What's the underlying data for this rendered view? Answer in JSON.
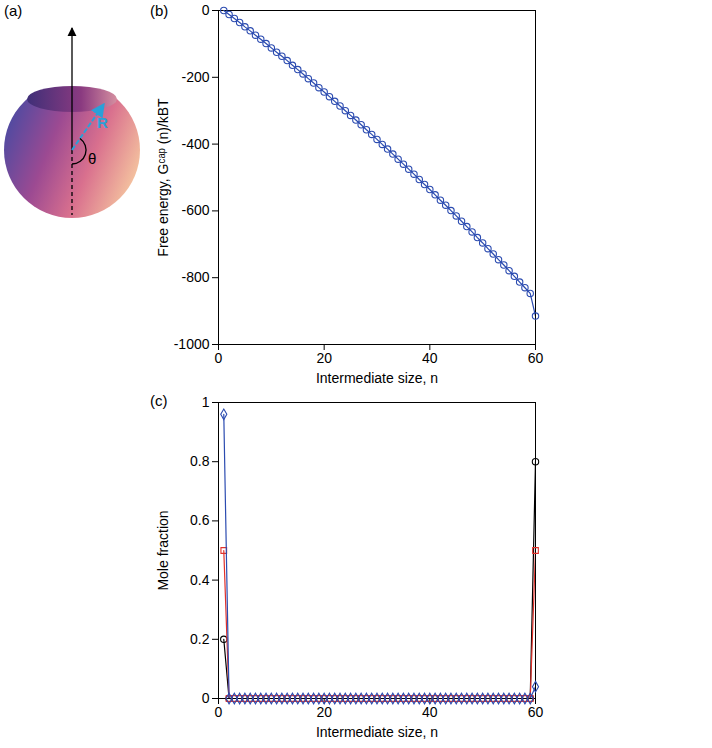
{
  "chart_data": [
    {
      "type": "diagram",
      "panel": "(a)",
      "labels": {
        "radius": "R",
        "angle": "θ"
      }
    },
    {
      "type": "line",
      "panel": "(b)",
      "x_label": "Intermediate size, n",
      "y_label": "Free energy, Gᶜᵃᵖ (n)/kBT",
      "x": [
        1,
        2,
        3,
        4,
        5,
        6,
        7,
        8,
        9,
        10,
        11,
        12,
        13,
        14,
        15,
        16,
        17,
        18,
        19,
        20,
        21,
        22,
        23,
        24,
        25,
        26,
        27,
        28,
        29,
        30,
        31,
        32,
        33,
        34,
        35,
        36,
        37,
        38,
        39,
        40,
        41,
        42,
        43,
        44,
        45,
        46,
        47,
        48,
        49,
        50,
        51,
        52,
        53,
        54,
        55,
        56,
        57,
        58,
        59,
        60
      ],
      "series": [
        {
          "color": "#2b4bb0",
          "marker": "circle",
          "line_style": "solid",
          "values": [
            0,
            -12,
            -24,
            -36,
            -49,
            -61,
            -74,
            -86,
            -99,
            -112,
            -125,
            -137,
            -150,
            -164,
            -177,
            -190,
            -204,
            -217,
            -231,
            -244,
            -258,
            -272,
            -286,
            -300,
            -314,
            -328,
            -342,
            -357,
            -371,
            -386,
            -401,
            -415,
            -430,
            -445,
            -460,
            -475,
            -490,
            -506,
            -521,
            -536,
            -552,
            -568,
            -583,
            -599,
            -615,
            -631,
            -647,
            -663,
            -680,
            -696,
            -713,
            -729,
            -746,
            -762,
            -779,
            -796,
            -813,
            -830,
            -847,
            -915
          ]
        }
      ],
      "xlim": [
        0,
        60
      ],
      "xticks": [
        0,
        20,
        40,
        60
      ],
      "ylim": [
        -1000,
        0
      ],
      "yticks": [
        -1000,
        -800,
        -600,
        -400,
        -200,
        0
      ],
      "grid": false
    },
    {
      "type": "line",
      "panel": "(c)",
      "x_label": "Intermediate size, n",
      "y_label": "Mole fraction",
      "x": [
        1,
        2,
        3,
        4,
        5,
        6,
        7,
        8,
        9,
        10,
        11,
        12,
        13,
        14,
        15,
        16,
        17,
        18,
        19,
        20,
        21,
        22,
        23,
        24,
        25,
        26,
        27,
        28,
        29,
        30,
        31,
        32,
        33,
        34,
        35,
        36,
        37,
        38,
        39,
        40,
        41,
        42,
        43,
        44,
        45,
        46,
        47,
        48,
        49,
        50,
        51,
        52,
        53,
        54,
        55,
        56,
        57,
        58,
        59,
        60
      ],
      "series": [
        {
          "color": "#000000",
          "marker": "circle",
          "line_style": "solid",
          "values": [
            0.2,
            0,
            0,
            0,
            0,
            0,
            0,
            0,
            0,
            0,
            0,
            0,
            0,
            0,
            0,
            0,
            0,
            0,
            0,
            0,
            0,
            0,
            0,
            0,
            0,
            0,
            0,
            0,
            0,
            0,
            0,
            0,
            0,
            0,
            0,
            0,
            0,
            0,
            0,
            0,
            0,
            0,
            0,
            0,
            0,
            0,
            0,
            0,
            0,
            0,
            0,
            0,
            0,
            0,
            0,
            0,
            0,
            0,
            0,
            0.8
          ]
        },
        {
          "color": "#e0302a",
          "marker": "square",
          "line_style": "solid",
          "values": [
            0.5,
            0,
            0,
            0,
            0,
            0,
            0,
            0,
            0,
            0,
            0,
            0,
            0,
            0,
            0,
            0,
            0,
            0,
            0,
            0,
            0,
            0,
            0,
            0,
            0,
            0,
            0,
            0,
            0,
            0,
            0,
            0,
            0,
            0,
            0,
            0,
            0,
            0,
            0,
            0,
            0,
            0,
            0,
            0,
            0,
            0,
            0,
            0,
            0,
            0,
            0,
            0,
            0,
            0,
            0,
            0,
            0,
            0,
            0,
            0.5
          ]
        },
        {
          "color": "#2b4bb0",
          "marker": "diamond",
          "line_style": "solid",
          "values": [
            0.96,
            0,
            0,
            0,
            0,
            0,
            0,
            0,
            0,
            0,
            0,
            0,
            0,
            0,
            0,
            0,
            0,
            0,
            0,
            0,
            0,
            0,
            0,
            0,
            0,
            0,
            0,
            0,
            0,
            0,
            0,
            0,
            0,
            0,
            0,
            0,
            0,
            0,
            0,
            0,
            0,
            0,
            0,
            0,
            0,
            0,
            0,
            0,
            0,
            0,
            0,
            0,
            0,
            0,
            0,
            0,
            0,
            0,
            0,
            0.04
          ]
        }
      ],
      "xlim": [
        0,
        60
      ],
      "xticks": [
        0,
        20,
        40,
        60
      ],
      "ylim": [
        0,
        1
      ],
      "yticks": [
        0,
        0.2,
        0.4,
        0.6,
        0.8,
        1
      ],
      "grid": false
    }
  ]
}
